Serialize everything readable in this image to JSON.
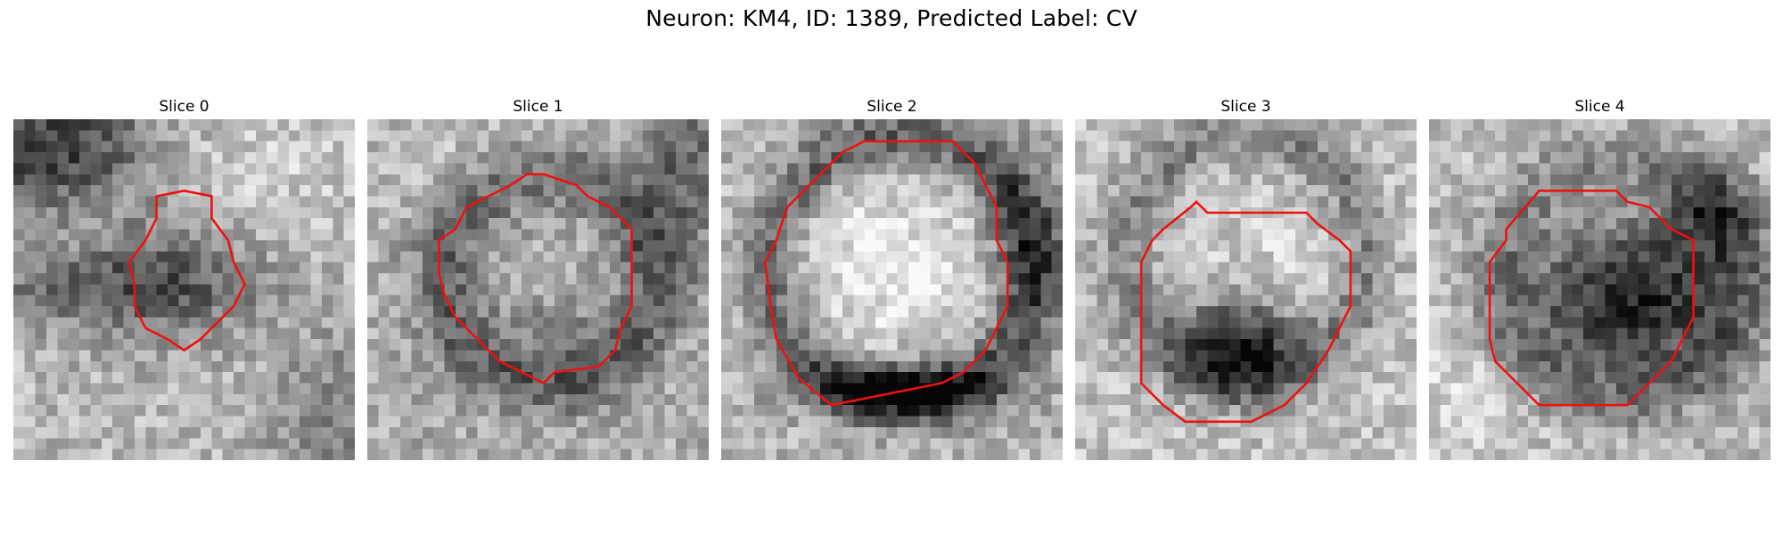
{
  "figure": {
    "title": "Neuron: KM4, ID: 1389, Predicted Label: CV"
  },
  "panels": [
    {
      "title": "Slice 0"
    },
    {
      "title": "Slice 1"
    },
    {
      "title": "Slice 2"
    },
    {
      "title": "Slice 3"
    },
    {
      "title": "Slice 4"
    }
  ],
  "colors": {
    "contour": "#ee1111",
    "colormap": "grayscale"
  }
}
